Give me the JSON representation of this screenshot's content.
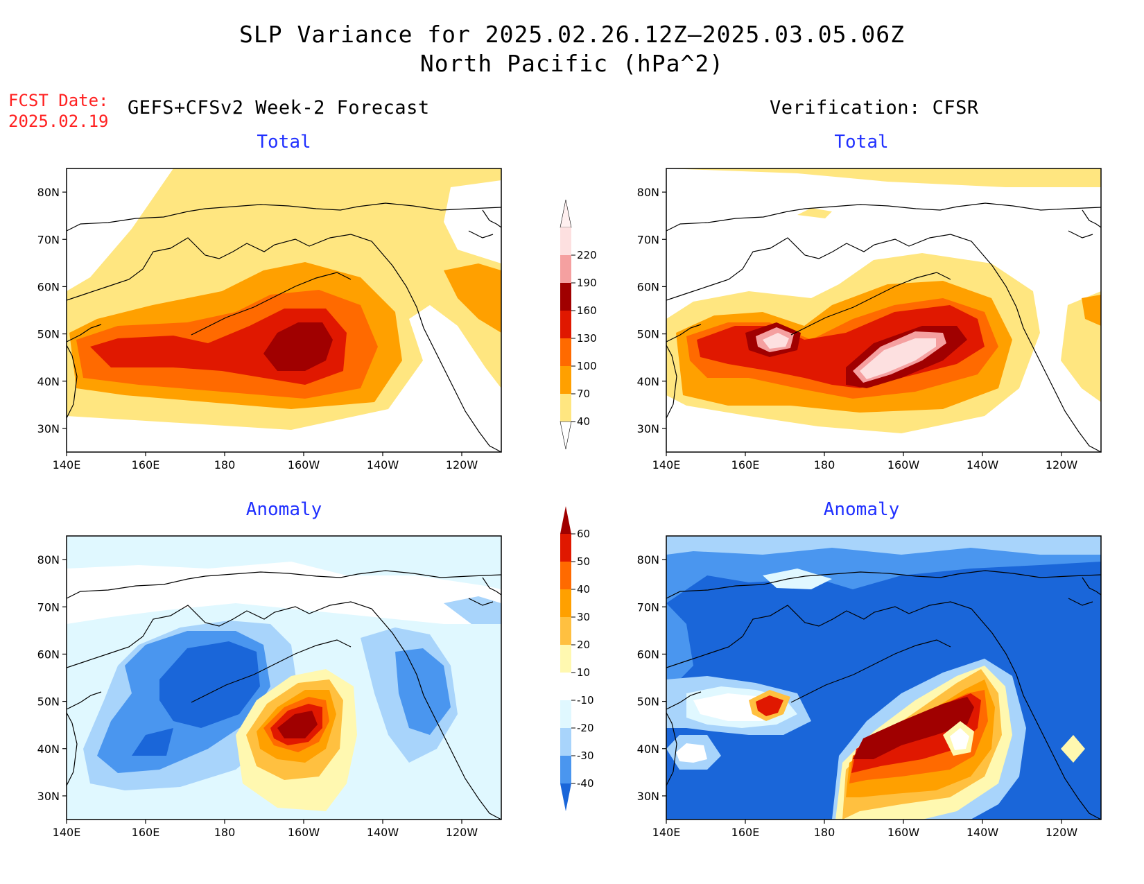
{
  "title": {
    "line1": "SLP Variance for 2025.02.26.12Z–2025.03.05.06Z",
    "line2": "North Pacific (hPa^2)"
  },
  "fcst_date": {
    "label": "FCST Date:",
    "value": "2025.02.19"
  },
  "headers": {
    "left": "GEFS+CFSv2 Week-2 Forecast",
    "right": "Verification: CFSR"
  },
  "panels": [
    {
      "id": "forecast-total",
      "subtitle": "Total"
    },
    {
      "id": "verification-total",
      "subtitle": "Total"
    },
    {
      "id": "forecast-anomaly",
      "subtitle": "Anomaly"
    },
    {
      "id": "verification-anomaly",
      "subtitle": "Anomaly"
    }
  ],
  "axes": {
    "lat_labels": [
      "80N",
      "70N",
      "60N",
      "50N",
      "40N",
      "30N"
    ],
    "lat_values": [
      80,
      70,
      60,
      50,
      40,
      30
    ],
    "lon_labels": [
      "140E",
      "160E",
      "180",
      "160W",
      "140W",
      "120W"
    ],
    "lon_values": [
      140,
      160,
      180,
      200,
      220,
      240
    ],
    "lon_range": [
      140,
      250
    ],
    "lat_range": [
      25,
      85
    ]
  },
  "colorbars": {
    "total": {
      "labels": [
        "40",
        "70",
        "100",
        "130",
        "160",
        "190",
        "220"
      ],
      "colors": [
        "#ffe680",
        "#ffa000",
        "#ff6a00",
        "#e01800",
        "#a00000",
        "#f5a0a0",
        "#fde0e0"
      ]
    },
    "anomaly": {
      "labels": [
        "-40",
        "-30",
        "-20",
        "-10",
        "10",
        "20",
        "30",
        "40",
        "50",
        "60"
      ],
      "colors": [
        "#1a66d9",
        "#4a96ef",
        "#a8d4fb",
        "#e0f8ff",
        "#ffffff",
        "#fff8b0",
        "#ffc040",
        "#ffa000",
        "#ff6a00",
        "#e01800",
        "#a00000"
      ]
    }
  }
}
